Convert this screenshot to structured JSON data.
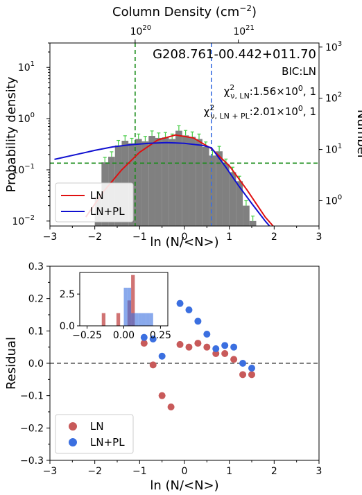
{
  "chart_data": [
    {
      "type": "bar",
      "title": "G208.761-00.442+011.70",
      "xlabel": "ln (N/<N>)",
      "ylabel": "Probability density",
      "ylabel_right": "Number",
      "xlabel_top": "Column Density (cm",
      "xlabel_top_exp": "−2",
      "xlabel_top_close": ")",
      "xlim": [
        -3,
        3
      ],
      "ylim": [
        0.008,
        30
      ],
      "y_scale": "log",
      "x_ticks": [
        "−3",
        "−2",
        "−1",
        "0",
        "1",
        "2",
        "3"
      ],
      "y_ticks": [
        {
          "v": 0.01,
          "b": "10",
          "e": "−2"
        },
        {
          "v": 0.1,
          "b": "10",
          "e": "−1"
        },
        {
          "v": 1,
          "b": "10",
          "e": "0"
        },
        {
          "v": 10,
          "b": "10",
          "e": "1"
        }
      ],
      "y2_ticks": [
        {
          "n": 1,
          "b": "10",
          "e": "0"
        },
        {
          "n": 10,
          "b": "10",
          "e": "1"
        },
        {
          "n": 100,
          "b": "10",
          "e": "2"
        },
        {
          "n": 1000,
          "b": "10",
          "e": "3"
        }
      ],
      "top_ticks": [
        {
          "x": -1.1,
          "b": "10",
          "e": "20"
        },
        {
          "x": 1.2,
          "b": "10",
          "e": "21"
        }
      ],
      "bic": "BIC:LN",
      "chi_ln": {
        "pre": "χ",
        "sup": "2",
        "sub": "ν, LN",
        "post": ":1.56×10",
        "pexp": "0",
        "tail": ", 1"
      },
      "chi_lnpl": {
        "pre": "χ",
        "sup": "2",
        "sub": "ν, LN + PL",
        "post": ":2.01×10",
        "pexp": "0",
        "tail": ", 1"
      },
      "bins": {
        "left": [
          -2.0,
          -1.85,
          -1.7,
          -1.55,
          -1.4,
          -1.25,
          -1.1,
          -0.95,
          -0.8,
          -0.65,
          -0.5,
          -0.35,
          -0.2,
          -0.05,
          0.1,
          0.25,
          0.4,
          0.55,
          0.7,
          0.85,
          1.0,
          1.15,
          1.3,
          1.45
        ],
        "width": 0.15,
        "values": [
          0.03,
          0.14,
          0.18,
          0.3,
          0.37,
          0.33,
          0.4,
          0.36,
          0.46,
          0.42,
          0.43,
          0.4,
          0.58,
          0.47,
          0.44,
          0.4,
          0.28,
          0.19,
          0.23,
          0.13,
          0.09,
          0.06,
          0.02,
          0.01
        ]
      },
      "vlines": [
        {
          "x": -1.1,
          "color": "#1a8c1a"
        },
        {
          "x": 0.6,
          "color": "#3b6fe0"
        }
      ],
      "hline": {
        "y": 0.135,
        "color": "#1a8c1a"
      },
      "series": [
        {
          "name": "LN",
          "color": "#e01010",
          "x": [
            -2.2,
            -1.8,
            -1.4,
            -1.0,
            -0.6,
            -0.2,
            0.2,
            0.6,
            1.0,
            1.4,
            1.8,
            2.1
          ],
          "y": [
            0.012,
            0.038,
            0.1,
            0.22,
            0.38,
            0.48,
            0.42,
            0.26,
            0.12,
            0.04,
            0.012,
            0.006
          ]
        },
        {
          "name": "LN+PL",
          "color": "#1010d0",
          "x": [
            -2.9,
            -2.4,
            -2.0,
            -1.6,
            -1.2,
            -0.8,
            -0.4,
            0.0,
            0.4,
            0.6,
            0.9,
            1.2,
            1.5,
            1.8,
            2.1
          ],
          "y": [
            0.16,
            0.2,
            0.24,
            0.28,
            0.31,
            0.33,
            0.34,
            0.33,
            0.3,
            0.27,
            0.12,
            0.05,
            0.022,
            0.01,
            0.005
          ]
        }
      ],
      "legend": {
        "placement": "lower-left",
        "items": [
          "LN",
          "LN+PL"
        ]
      }
    },
    {
      "type": "scatter",
      "xlabel": "ln (N/<N>)",
      "ylabel": "Residual",
      "xlim": [
        -3,
        3
      ],
      "ylim": [
        -0.3,
        0.3
      ],
      "x_ticks": [
        "−3",
        "−2",
        "−1",
        "0",
        "1",
        "2",
        "3"
      ],
      "y_ticks": [
        {
          "v": -0.3,
          "t": "−0.3"
        },
        {
          "v": -0.2,
          "t": "−0.2"
        },
        {
          "v": -0.1,
          "t": "−0.1"
        },
        {
          "v": 0.0,
          "t": "0.0"
        },
        {
          "v": 0.1,
          "t": "0.1"
        },
        {
          "v": 0.2,
          "t": "0.2"
        },
        {
          "v": 0.3,
          "t": "0.3"
        }
      ],
      "zero_line": 0.0,
      "series": [
        {
          "name": "LN",
          "color": "#c85a5a",
          "x": [
            -0.9,
            -0.7,
            -0.5,
            -0.3,
            -0.1,
            0.1,
            0.3,
            0.5,
            0.7,
            0.9,
            1.1,
            1.3,
            1.5
          ],
          "y": [
            0.062,
            -0.005,
            -0.1,
            -0.135,
            0.058,
            0.05,
            0.062,
            0.05,
            0.03,
            0.03,
            0.012,
            -0.035,
            -0.035
          ]
        },
        {
          "name": "LN+PL",
          "color": "#3b6fe0",
          "x": [
            -0.9,
            -0.7,
            -0.5,
            -0.1,
            0.1,
            0.3,
            0.5,
            0.7,
            0.9,
            1.1,
            1.3,
            1.5
          ],
          "y": [
            0.08,
            0.075,
            0.022,
            0.185,
            0.165,
            0.13,
            0.09,
            0.045,
            0.055,
            0.05,
            0.0,
            -0.015
          ]
        }
      ],
      "legend": {
        "placement": "lower-left",
        "items": [
          "LN",
          "LN+PL"
        ]
      },
      "inset": {
        "xlim": [
          -0.3,
          0.3
        ],
        "ylim": [
          0,
          4.2
        ],
        "x_ticks": [
          "−0.25",
          "0.00",
          "0.25"
        ],
        "x_tick_vals": [
          -0.25,
          0.0,
          0.25
        ],
        "y_ticks": [
          "0.0",
          "2.5"
        ],
        "y_tick_vals": [
          0.0,
          2.5
        ],
        "bins": {
          "width": 0.025,
          "ln_left": [
            -0.15,
            -0.05,
            0.025,
            0.05
          ],
          "ln_values": [
            1,
            1,
            2,
            4
          ],
          "lnpl_left": [
            0.0,
            0.025,
            0.05,
            0.075,
            0.1,
            0.125,
            0.15,
            0.175
          ],
          "lnpl_values": [
            3,
            3,
            1,
            1,
            1,
            1,
            1,
            1
          ]
        }
      }
    }
  ]
}
